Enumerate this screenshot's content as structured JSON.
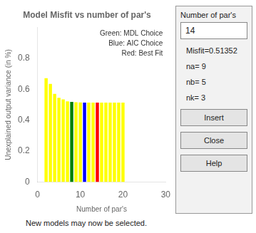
{
  "chart_data": {
    "type": "bar",
    "title": "Model Misfit vs number of par's",
    "xlabel": "Number of par's",
    "ylabel": "Unexplained output variance (in %)",
    "x": [
      2,
      3,
      4,
      5,
      6,
      7,
      8,
      9,
      10,
      11,
      12,
      13,
      14,
      15,
      16,
      17,
      18,
      19,
      20
    ],
    "values": [
      0.672,
      0.635,
      0.57,
      0.545,
      0.535,
      0.522,
      0.518,
      0.516,
      0.515,
      0.514,
      0.514,
      0.514,
      0.514,
      0.514,
      0.514,
      0.514,
      0.514,
      0.514,
      0.514
    ],
    "colors": [
      "yellow",
      "yellow",
      "yellow",
      "yellow",
      "yellow",
      "yellow",
      "green",
      "yellow",
      "yellow",
      "blue",
      "yellow",
      "yellow",
      "red",
      "yellow",
      "yellow",
      "yellow",
      "yellow",
      "yellow",
      "yellow"
    ],
    "xlim": [
      0,
      30
    ],
    "xticks": [
      0,
      10,
      20,
      30
    ],
    "ylim": [
      0,
      1.0
    ],
    "yticks": [
      0,
      0.2,
      0.4,
      0.6,
      0.8
    ],
    "grid": false,
    "annotations": [
      "Green: MDL Choice",
      "Blue: AIC Choice",
      "Red: Best Fit",
      "Number of par's",
      "14",
      "Misfit=0.51352",
      "na= 9",
      "nb= 5",
      "nk= 3",
      "Insert",
      "Close",
      "Help",
      "New models may now be selected."
    ]
  }
}
